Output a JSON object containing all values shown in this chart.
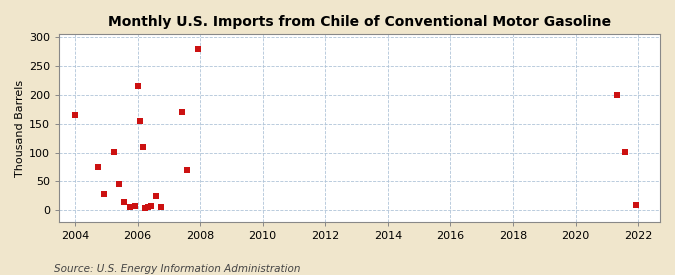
{
  "title": "U.S. Imports from Chile of Conventional Motor Gasoline",
  "title_prefix": "Monthly ",
  "ylabel": "Thousand Barrels",
  "source": "Source: U.S. Energy Information Administration",
  "background_color": "#f0e6cc",
  "plot_background_color": "#ffffff",
  "marker_color": "#cc1111",
  "marker_size": 4,
  "xlim": [
    2003.5,
    2022.7
  ],
  "ylim": [
    -20,
    305
  ],
  "xticks": [
    2004,
    2006,
    2008,
    2010,
    2012,
    2014,
    2016,
    2018,
    2020,
    2022
  ],
  "yticks": [
    0,
    50,
    100,
    150,
    200,
    250,
    300
  ],
  "data_x": [
    2004.0,
    2004.75,
    2004.917,
    2005.25,
    2005.417,
    2005.583,
    2005.75,
    2005.917,
    2006.0,
    2006.083,
    2006.167,
    2006.25,
    2006.333,
    2006.417,
    2006.583,
    2006.75,
    2007.417,
    2007.583,
    2007.917,
    2021.333,
    2021.583,
    2021.917
  ],
  "data_y": [
    165,
    75,
    28,
    101,
    46,
    15,
    5,
    8,
    216,
    155,
    110,
    3,
    5,
    8,
    25,
    5,
    170,
    70,
    280,
    200,
    101,
    9
  ],
  "grid_color": "#b0c4d8",
  "grid_linestyle": "--",
  "grid_linewidth": 0.6,
  "spine_color": "#888888",
  "tick_fontsize": 8,
  "ylabel_fontsize": 8,
  "title_fontsize": 10,
  "source_fontsize": 7.5
}
